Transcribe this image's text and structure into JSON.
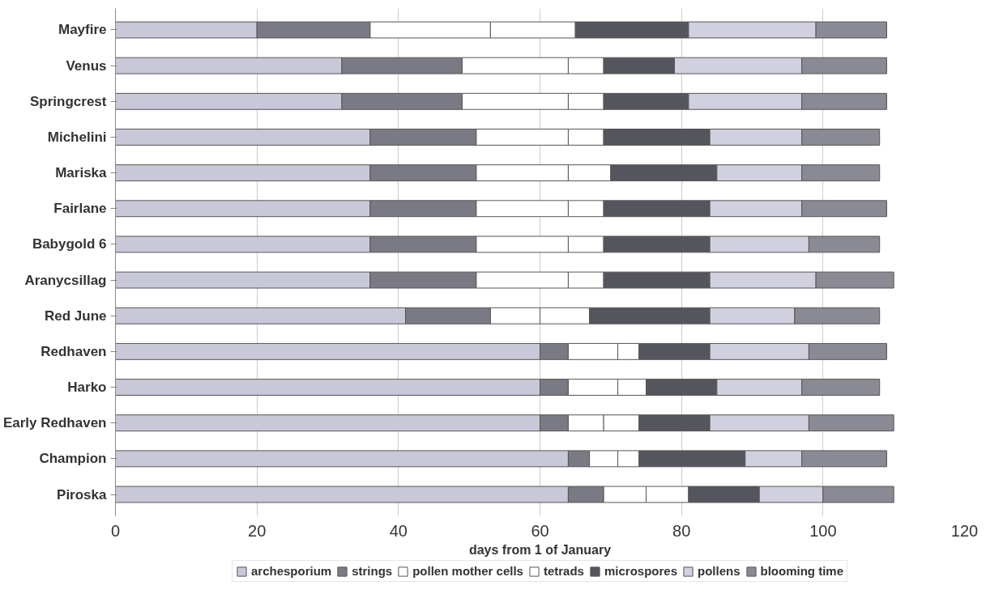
{
  "chart_data": {
    "type": "bar",
    "orientation": "horizontal",
    "stacked": true,
    "xlabel": "days from 1 of January",
    "categories": [
      "Mayfire",
      "Venus",
      "Springcrest",
      "Michelini",
      "Mariska",
      "Fairlane",
      "Babygold 6",
      "Aranycsillag",
      "Red June",
      "Redhaven",
      "Harko",
      "Early Redhaven",
      "Champion",
      "Piroska"
    ],
    "series": [
      {
        "name": "archesporium",
        "color": "#c8c8d8",
        "values": [
          20,
          32,
          32,
          36,
          36,
          36,
          36,
          36,
          41,
          60,
          60,
          60,
          64,
          64
        ]
      },
      {
        "name": "strings",
        "color": "#7a7a84",
        "values": [
          16,
          17,
          17,
          15,
          15,
          15,
          15,
          15,
          12,
          4,
          4,
          4,
          3,
          5
        ]
      },
      {
        "name": "pollen mother cells",
        "color": "#ffffff",
        "values": [
          17,
          15,
          15,
          13,
          13,
          13,
          13,
          13,
          7,
          7,
          7,
          5,
          4,
          6
        ]
      },
      {
        "name": "tetrads",
        "color": "#ffffff",
        "values": [
          12,
          5,
          5,
          5,
          6,
          5,
          5,
          5,
          7,
          3,
          4,
          5,
          3,
          6
        ]
      },
      {
        "name": "microspores",
        "color": "#55555e",
        "values": [
          16,
          10,
          12,
          15,
          15,
          15,
          15,
          15,
          17,
          10,
          10,
          10,
          15,
          10
        ]
      },
      {
        "name": "pollens",
        "color": "#d0d0de",
        "values": [
          18,
          18,
          16,
          13,
          12,
          13,
          14,
          15,
          12,
          14,
          12,
          14,
          8,
          9
        ]
      },
      {
        "name": "blooming time",
        "color": "#8a8a94",
        "values": [
          10,
          12,
          12,
          11,
          11,
          12,
          10,
          11,
          12,
          11,
          11,
          12,
          12,
          10
        ]
      }
    ],
    "xlim": [
      0,
      120
    ],
    "xticks": [
      0,
      20,
      40,
      60,
      80,
      100,
      120
    ],
    "grid": "x",
    "legend": "bottom"
  }
}
